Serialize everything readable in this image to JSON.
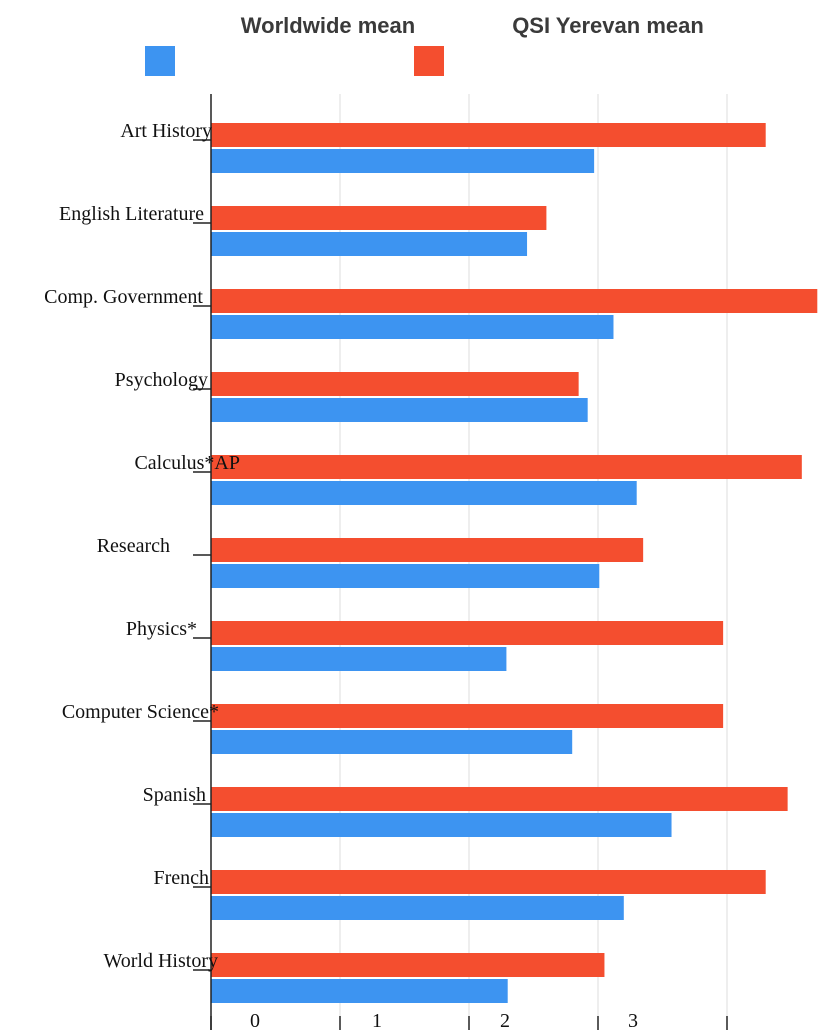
{
  "chart_data": {
    "type": "bar",
    "orientation": "horizontal",
    "categories": [
      "Art History",
      "English Literature",
      "Comp. Government",
      "Psychology",
      "Calculus*AP",
      "Research",
      "Physics*",
      "Computer Science*",
      "Spanish",
      "French",
      "World History"
    ],
    "series": [
      {
        "name": "QSI Yerevan mean",
        "color": "#f44e2f",
        "values": [
          4.3,
          2.6,
          4.7,
          2.85,
          4.58,
          3.35,
          3.97,
          3.97,
          4.47,
          4.3,
          3.05
        ]
      },
      {
        "name": "Worldwide mean",
        "color": "#3d94f1",
        "values": [
          2.97,
          2.45,
          3.12,
          2.92,
          3.3,
          3.01,
          2.29,
          2.8,
          3.57,
          3.2,
          2.3
        ]
      }
    ],
    "x_ticks": [
      "0",
      "1",
      "2",
      "3"
    ],
    "xlim": [
      0,
      4.7
    ],
    "grid": true,
    "legend_position": "top",
    "legend_order": [
      "Worldwide mean",
      "QSI Yerevan mean"
    ]
  }
}
